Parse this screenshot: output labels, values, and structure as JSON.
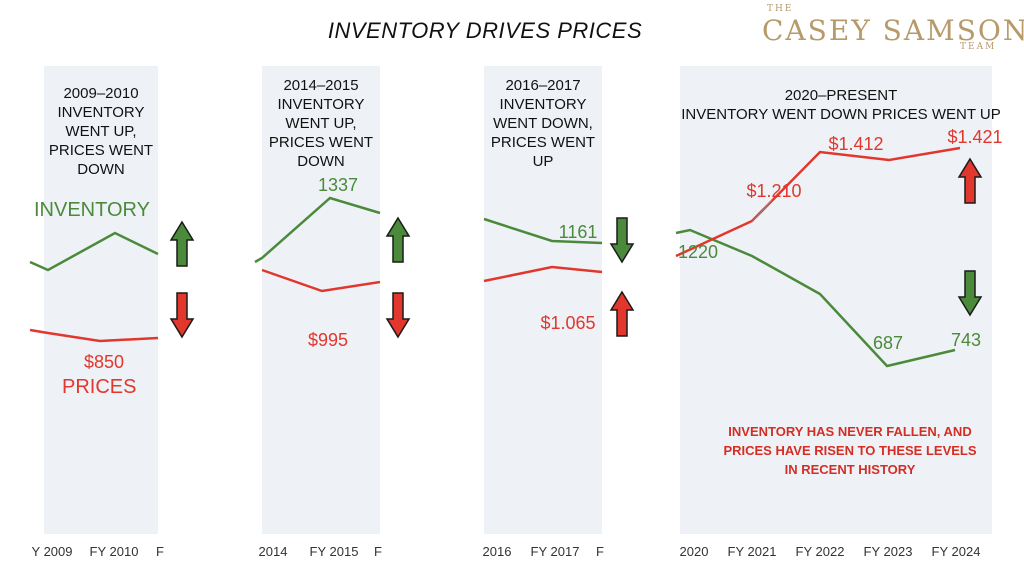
{
  "title": "INVENTORY DRIVES PRICES",
  "logo": {
    "top": "THE",
    "name": "CASEY SAMSON",
    "sub": "TEAM"
  },
  "note": [
    "INVENTORY HAS NEVER FALLEN, AND",
    "PRICES HAVE RISEN TO THESE LEVELS",
    "IN RECENT HISTORY"
  ],
  "series_labels": {
    "inventory": "INVENTORY",
    "prices": "PRICES"
  },
  "colors": {
    "inventory": "#4a8a3a",
    "prices": "#e1372c",
    "arrow_up_green": "#4a8a3a",
    "arrow_down_red": "#e1372c",
    "panel": "#eef2f7"
  },
  "chart_data": [
    {
      "type": "line",
      "title_lines": [
        "2009–2010",
        "INVENTORY",
        "WENT UP,",
        "PRICES WENT",
        "DOWN"
      ],
      "tick_labels": [
        "Y 2009",
        "FY 2010",
        "F"
      ],
      "series": [
        {
          "name": "INVENTORY",
          "values": [
            null,
            null,
            null
          ],
          "annotations": []
        },
        {
          "name": "PRICES",
          "values": [
            null,
            850,
            null
          ],
          "annotations": [
            {
              "text": "$850"
            }
          ]
        }
      ],
      "arrows": [
        {
          "direction": "up",
          "color": "green"
        },
        {
          "direction": "down",
          "color": "red"
        }
      ]
    },
    {
      "type": "line",
      "title_lines": [
        "2014–2015",
        "INVENTORY",
        "WENT UP,",
        "PRICES WENT",
        "DOWN"
      ],
      "tick_labels": [
        "2014",
        "FY 2015",
        "F"
      ],
      "series": [
        {
          "name": "INVENTORY",
          "values": [
            null,
            1337,
            null
          ],
          "annotations": [
            {
              "text": "1337"
            }
          ]
        },
        {
          "name": "PRICES",
          "values": [
            null,
            995,
            null
          ],
          "annotations": [
            {
              "text": "$995"
            }
          ]
        }
      ],
      "arrows": [
        {
          "direction": "up",
          "color": "green"
        },
        {
          "direction": "down",
          "color": "red"
        }
      ]
    },
    {
      "type": "line",
      "title_lines": [
        "2016–2017",
        "INVENTORY",
        "WENT DOWN,",
        "PRICES WENT",
        "UP"
      ],
      "tick_labels": [
        "2016",
        "FY 2017",
        "F"
      ],
      "series": [
        {
          "name": "INVENTORY",
          "values": [
            null,
            1161,
            null
          ],
          "annotations": [
            {
              "text": "1161"
            }
          ]
        },
        {
          "name": "PRICES",
          "values": [
            null,
            1065,
            null
          ],
          "annotations": [
            {
              "text": "$1.065"
            }
          ]
        }
      ],
      "arrows": [
        {
          "direction": "down",
          "color": "green"
        },
        {
          "direction": "up",
          "color": "red"
        }
      ]
    },
    {
      "type": "line",
      "title_lines": [
        "2020–PRESENT",
        "INVENTORY WENT DOWN PRICES WENT UP"
      ],
      "tick_labels": [
        "2020",
        "FY 2021",
        "FY 2022",
        "FY 2023",
        "FY 2024"
      ],
      "series": [
        {
          "name": "INVENTORY",
          "values": [
            1220,
            null,
            null,
            687,
            743
          ],
          "annotations": [
            {
              "text": "1220"
            },
            {
              "text": "687"
            },
            {
              "text": "743"
            }
          ]
        },
        {
          "name": "PRICES",
          "values": [
            null,
            1210,
            1412,
            null,
            1421
          ],
          "annotations": [
            {
              "text": "$1.210"
            },
            {
              "text": "$1.412"
            },
            {
              "text": "$1.421"
            }
          ]
        }
      ],
      "arrows": [
        {
          "direction": "up",
          "color": "red"
        },
        {
          "direction": "down",
          "color": "green"
        }
      ]
    }
  ]
}
